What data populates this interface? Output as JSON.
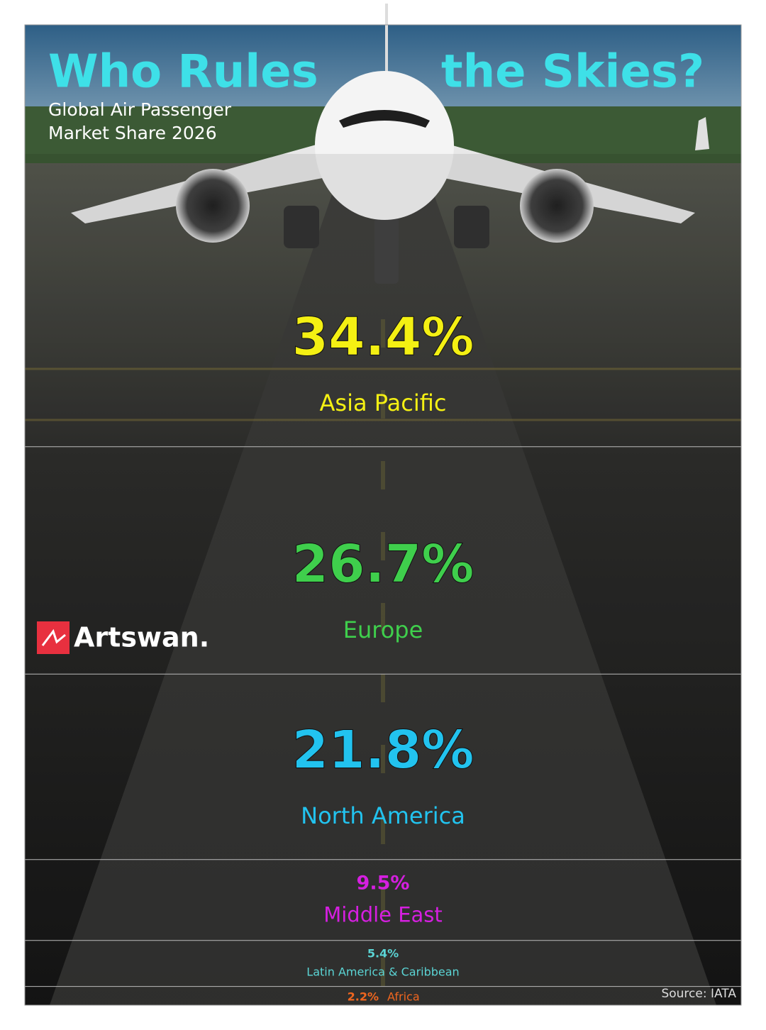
{
  "chart_data": {
    "type": "share-bands",
    "title": [
      "Who Rules",
      "the Skies?"
    ],
    "subtitle": [
      "Global Air Passenger",
      "Market Share 2026"
    ],
    "brand": "Artswan.",
    "source": "Source: IATA",
    "categories": [
      "Asia Pacific",
      "Europe",
      "North America",
      "Middle East",
      "Latin America & Caribbean",
      "Africa"
    ],
    "values": [
      34.4,
      26.7,
      21.8,
      9.5,
      5.4,
      2.2
    ],
    "value_labels": [
      "34.4%",
      "26.7%",
      "21.8%",
      "9.5%",
      "5.4%",
      "2.2%"
    ],
    "colors": [
      "#f4f013",
      "#3fcf4c",
      "#22c3ef",
      "#d51fe0",
      "#5bd5d5",
      "#f0661f"
    ]
  }
}
